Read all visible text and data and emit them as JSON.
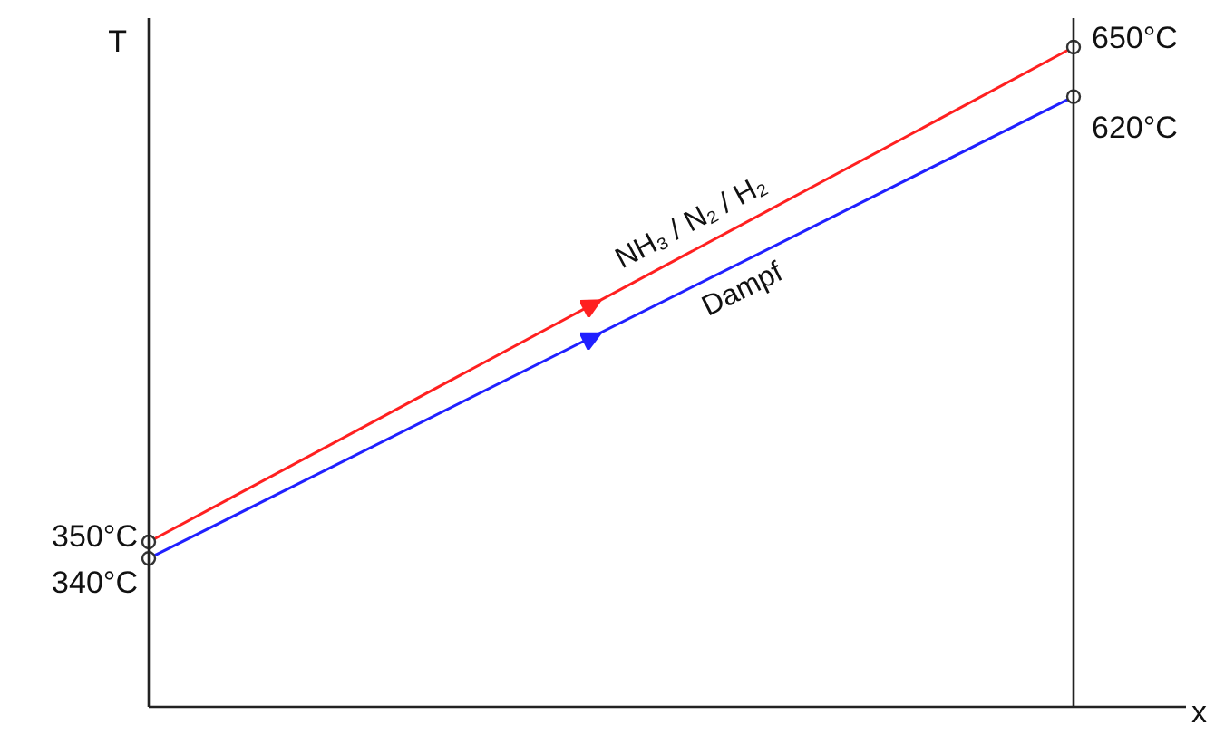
{
  "chart_data": {
    "type": "line",
    "ylabel": "T",
    "xlabel": "x",
    "categories": [
      null,
      null
    ],
    "series": [
      {
        "name": "NH₃ / N₂ / H₂",
        "color": "#ff2020",
        "values": [
          350,
          650
        ],
        "value_labels": [
          "350°C",
          "650°C"
        ]
      },
      {
        "name": "Dampf",
        "color": "#2020ff",
        "values": [
          340,
          620
        ],
        "value_labels": [
          "340°C",
          "620°C"
        ]
      }
    ],
    "marker": "circle",
    "line_style": "solid",
    "grid": false,
    "legend": false,
    "tick_labels": false
  }
}
